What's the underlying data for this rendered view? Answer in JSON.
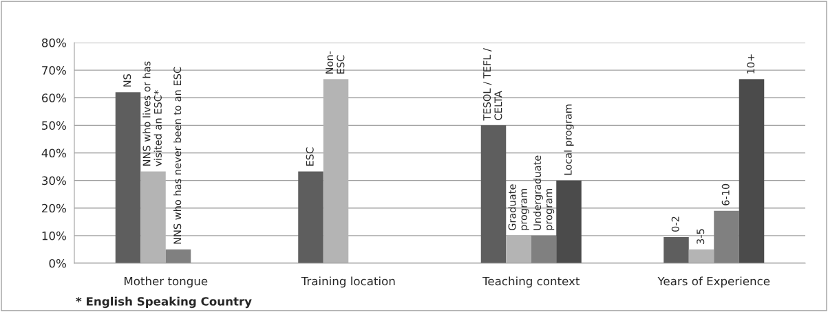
{
  "chart_data": {
    "type": "bar",
    "categories": [
      "Mother tongue",
      "Training location",
      "Teaching context",
      "Years of Experience"
    ],
    "series": [
      {
        "color": "#5e5e5e",
        "values": [
          62,
          33.3,
          50,
          9.5
        ],
        "value_labels": [
          "NS",
          "ESC",
          "TESOL / TEFL /\nCELTA",
          "0-2"
        ]
      },
      {
        "color": "#b4b4b4",
        "values": [
          33.3,
          66.7,
          10,
          5
        ],
        "value_labels": [
          "NNS who lives or has\nvisited an ESC*",
          "Non-\nESC",
          "Graduate\nprogram",
          "3-5"
        ]
      },
      {
        "color": "#808080",
        "values": [
          5,
          null,
          10,
          19
        ],
        "value_labels": [
          "NNS who has never been to an ESC",
          null,
          "Undergraduate\nprogram",
          "6-10"
        ]
      },
      {
        "color": "#4b4b4b",
        "values": [
          null,
          null,
          30,
          66.7
        ],
        "value_labels": [
          null,
          null,
          "Local program",
          "10+"
        ]
      }
    ],
    "ylim": [
      0,
      80
    ],
    "yticks": [
      {
        "value": 0,
        "label": "0%"
      },
      {
        "value": 10,
        "label": "10%"
      },
      {
        "value": 20,
        "label": "20%"
      },
      {
        "value": 30,
        "label": "30%"
      },
      {
        "value": 40,
        "label": "40%"
      },
      {
        "value": 50,
        "label": "50%"
      },
      {
        "value": 60,
        "label": "60%"
      },
      {
        "value": 70,
        "label": "70%"
      },
      {
        "value": 80,
        "label": "80%"
      }
    ],
    "grid": "y",
    "legend": false,
    "annotations": [
      "* English Speaking Country"
    ]
  }
}
